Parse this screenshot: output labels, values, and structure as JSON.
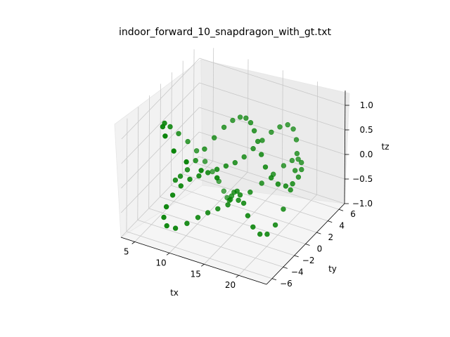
{
  "chart_data": {
    "type": "scatter3d",
    "title": "indoor_forward_10_snapdragon_with_gt.txt",
    "xlabel": "tx",
    "ylabel": "ty",
    "zlabel": "tz",
    "xlim": [
      3,
      24
    ],
    "ylim": [
      -7,
      7
    ],
    "zlim": [
      -1.0,
      1.3
    ],
    "xticks": [
      "5",
      "10",
      "15",
      "20"
    ],
    "yticks": [
      "−6",
      "−4",
      "−2",
      "0",
      "2",
      "4",
      "6"
    ],
    "zticks": [
      "−1.0",
      "−0.5",
      "0.0",
      "0.5",
      "1.0"
    ],
    "grid": true,
    "marker_color": "#008000",
    "series": [
      {
        "points": [
          [
            14.0,
            -3.5,
            0.3
          ],
          [
            12.5,
            -4.5,
            0.5
          ],
          [
            11.0,
            -5.3,
            0.7
          ],
          [
            9.5,
            -5.7,
            0.9
          ],
          [
            8.0,
            -5.4,
            1.1
          ],
          [
            7.0,
            -4.6,
            1.15
          ],
          [
            6.3,
            -3.4,
            1.05
          ],
          [
            6.0,
            -2.0,
            0.8
          ],
          [
            6.1,
            -0.6,
            0.5
          ],
          [
            6.4,
            0.7,
            0.2
          ],
          [
            6.8,
            1.8,
            -0.1
          ],
          [
            7.3,
            2.7,
            -0.4
          ],
          [
            7.9,
            3.3,
            -0.65
          ],
          [
            8.6,
            3.6,
            -0.85
          ],
          [
            9.4,
            3.5,
            -1.0
          ],
          [
            10.2,
            3.1,
            -1.05
          ],
          [
            11.0,
            2.5,
            -1.0
          ],
          [
            11.8,
            1.7,
            -0.85
          ],
          [
            12.6,
            0.9,
            -0.65
          ],
          [
            13.5,
            0.2,
            -0.45
          ],
          [
            14.5,
            -0.5,
            -0.3
          ],
          [
            15.5,
            -1.2,
            -0.25
          ],
          [
            16.5,
            -1.8,
            -0.3
          ],
          [
            17.5,
            -2.3,
            -0.45
          ],
          [
            18.5,
            -2.6,
            -0.6
          ],
          [
            19.5,
            -2.6,
            -0.7
          ],
          [
            20.3,
            -2.3,
            -0.7
          ],
          [
            21.0,
            -1.7,
            -0.55
          ],
          [
            21.5,
            -0.9,
            -0.3
          ],
          [
            21.8,
            0.0,
            0.0
          ],
          [
            21.8,
            0.8,
            0.3
          ],
          [
            21.5,
            1.5,
            0.55
          ],
          [
            21.0,
            2.0,
            0.75
          ],
          [
            20.3,
            2.3,
            0.9
          ],
          [
            19.5,
            2.3,
            0.95
          ],
          [
            18.6,
            2.0,
            0.9
          ],
          [
            17.7,
            1.6,
            0.8
          ],
          [
            16.8,
            1.1,
            0.65
          ],
          [
            15.9,
            0.6,
            0.5
          ],
          [
            15.0,
            0.1,
            0.35
          ],
          [
            14.1,
            -0.4,
            0.25
          ],
          [
            13.2,
            -0.9,
            0.2
          ],
          [
            12.3,
            -1.4,
            0.15
          ],
          [
            11.4,
            -1.9,
            0.1
          ],
          [
            10.5,
            -2.4,
            0.05
          ],
          [
            9.6,
            -2.9,
            0.0
          ],
          [
            8.8,
            -3.5,
            -0.1
          ],
          [
            8.1,
            -4.1,
            -0.25
          ],
          [
            7.6,
            -4.6,
            -0.45
          ],
          [
            7.4,
            -4.8,
            -0.65
          ],
          [
            7.6,
            -4.5,
            -0.85
          ],
          [
            8.3,
            -3.8,
            -0.95
          ],
          [
            9.3,
            -3.0,
            -0.9
          ],
          [
            10.4,
            -2.4,
            -0.8
          ],
          [
            11.5,
            -2.0,
            -0.7
          ],
          [
            12.7,
            -1.7,
            -0.6
          ],
          [
            13.9,
            -1.4,
            -0.5
          ],
          [
            15.1,
            -1.0,
            -0.4
          ],
          [
            16.3,
            -0.4,
            -0.25
          ],
          [
            17.4,
            0.3,
            -0.1
          ],
          [
            18.5,
            1.0,
            0.05
          ],
          [
            19.5,
            1.6,
            0.2
          ],
          [
            20.4,
            2.0,
            0.3
          ],
          [
            21.2,
            2.1,
            0.35
          ],
          [
            21.9,
            1.8,
            0.35
          ],
          [
            22.4,
            1.2,
            0.3
          ],
          [
            22.6,
            0.4,
            0.25
          ],
          [
            22.4,
            -0.4,
            0.2
          ],
          [
            21.9,
            -1.0,
            0.2
          ],
          [
            21.1,
            -1.4,
            0.25
          ],
          [
            20.2,
            -1.5,
            0.35
          ],
          [
            19.2,
            -1.3,
            0.5
          ],
          [
            18.2,
            -0.8,
            0.65
          ],
          [
            17.2,
            -0.2,
            0.8
          ],
          [
            16.2,
            0.4,
            0.9
          ],
          [
            15.2,
            1.0,
            0.95
          ],
          [
            14.2,
            1.4,
            0.95
          ],
          [
            13.2,
            1.6,
            0.9
          ],
          [
            12.2,
            1.5,
            0.8
          ],
          [
            11.2,
            1.2,
            0.65
          ],
          [
            10.2,
            0.7,
            0.45
          ],
          [
            9.3,
            0.1,
            0.25
          ],
          [
            8.5,
            -0.5,
            0.05
          ],
          [
            7.8,
            -1.1,
            -0.1
          ],
          [
            7.2,
            -1.6,
            -0.2
          ],
          [
            6.8,
            -2.0,
            -0.25
          ]
        ]
      }
    ]
  }
}
